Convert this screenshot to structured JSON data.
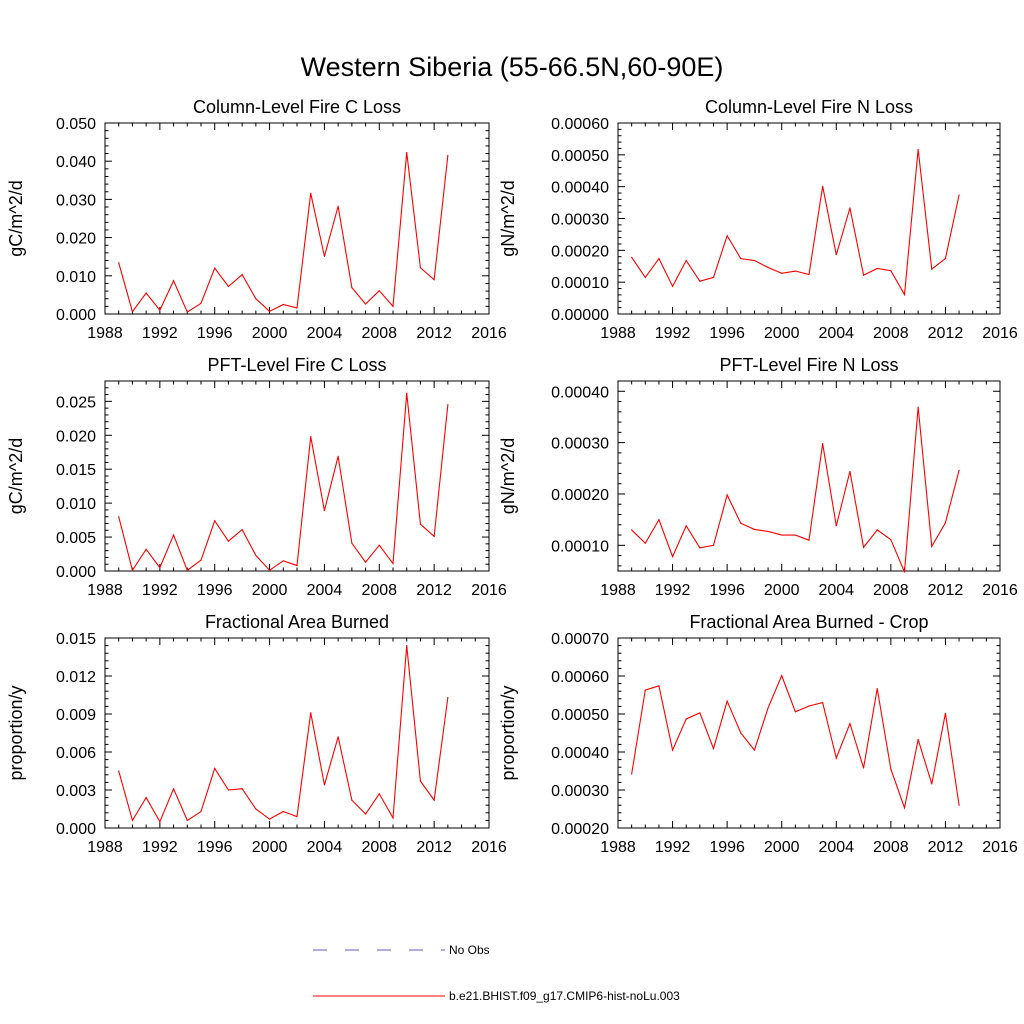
{
  "page": {
    "title": "Western Siberia (55-66.5N,60-90E)"
  },
  "chart_data": [
    {
      "type": "line",
      "title": "Column-Level Fire C Loss",
      "ylabel": "gC/m^2/d",
      "xlabel": "",
      "xlim": [
        1988,
        2016
      ],
      "ylim": [
        0,
        0.05
      ],
      "xticks": [
        1988,
        1992,
        1996,
        2000,
        2004,
        2008,
        2012,
        2016
      ],
      "yticks": [
        "0.000",
        "0.010",
        "0.020",
        "0.030",
        "0.040",
        "0.050"
      ],
      "x": [
        1989,
        1990,
        1991,
        1992,
        1993,
        1994,
        1995,
        1996,
        1997,
        1998,
        1999,
        2000,
        2001,
        2002,
        2003,
        2004,
        2005,
        2006,
        2007,
        2008,
        2009,
        2010,
        2011,
        2012,
        2013
      ],
      "series": [
        {
          "name": "b.e21.BHIST.f09_g17.CMIP6-hist-noLu.003",
          "color": "#ff0000",
          "values": [
            0.0134,
            0.0006,
            0.0055,
            0.001,
            0.0087,
            0.0005,
            0.0028,
            0.012,
            0.0072,
            0.0103,
            0.004,
            0.0007,
            0.0025,
            0.0016,
            0.0316,
            0.0151,
            0.0282,
            0.0069,
            0.0026,
            0.0061,
            0.002,
            0.0423,
            0.0121,
            0.009,
            0.0415
          ]
        }
      ]
    },
    {
      "type": "line",
      "title": "Column-Level Fire N Loss",
      "ylabel": "gN/m^2/d",
      "xlabel": "",
      "xlim": [
        1988,
        2016
      ],
      "ylim": [
        0,
        0.0006
      ],
      "xticks": [
        1988,
        1992,
        1996,
        2000,
        2004,
        2008,
        2012,
        2016
      ],
      "yticks": [
        "0.00000",
        "0.00010",
        "0.00020",
        "0.00030",
        "0.00040",
        "0.00050",
        "0.00060"
      ],
      "x": [
        1989,
        1990,
        1991,
        1992,
        1993,
        1994,
        1995,
        1996,
        1997,
        1998,
        1999,
        2000,
        2001,
        2002,
        2003,
        2004,
        2005,
        2006,
        2007,
        2008,
        2009,
        2010,
        2011,
        2012,
        2013
      ],
      "series": [
        {
          "name": "b.e21.BHIST.f09_g17.CMIP6-hist-noLu.003",
          "color": "#ff0000",
          "values": [
            0.000178,
            0.000115,
            0.000174,
            8.7e-05,
            0.000168,
            0.000103,
            0.000115,
            0.000246,
            0.000174,
            0.000168,
            0.000146,
            0.000128,
            0.000135,
            0.000124,
            0.000401,
            0.000186,
            0.000333,
            0.000122,
            0.000143,
            0.000136,
            6.1e-05,
            0.000517,
            0.000141,
            0.000174,
            0.000374
          ]
        }
      ]
    },
    {
      "type": "line",
      "title": "PFT-Level Fire C Loss",
      "ylabel": "gC/m^2/d",
      "xlabel": "",
      "xlim": [
        1988,
        2016
      ],
      "ylim": [
        0,
        0.028
      ],
      "xticks": [
        1988,
        1992,
        1996,
        2000,
        2004,
        2008,
        2012,
        2016
      ],
      "yticks": [
        "0.000",
        "0.005",
        "0.010",
        "0.015",
        "0.020",
        "0.025"
      ],
      "x": [
        1989,
        1990,
        1991,
        1992,
        1993,
        1994,
        1995,
        1996,
        1997,
        1998,
        1999,
        2000,
        2001,
        2002,
        2003,
        2004,
        2005,
        2006,
        2007,
        2008,
        2009,
        2010,
        2011,
        2012,
        2013
      ],
      "series": [
        {
          "name": "b.e21.BHIST.f09_g17.CMIP6-hist-noLu.003",
          "color": "#ff0000",
          "values": [
            0.008,
            0.0001,
            0.0032,
            0.0005,
            0.0053,
            0.0001,
            0.0016,
            0.0074,
            0.0044,
            0.0061,
            0.0023,
            0.0001,
            0.0015,
            0.0008,
            0.0198,
            0.0089,
            0.0169,
            0.0041,
            0.0013,
            0.0038,
            0.0011,
            0.0262,
            0.0069,
            0.0051,
            0.0245
          ]
        }
      ]
    },
    {
      "type": "line",
      "title": "PFT-Level Fire N Loss",
      "ylabel": "gN/m^2/d",
      "xlabel": "",
      "xlim": [
        1988,
        2016
      ],
      "ylim": [
        5e-05,
        0.00042
      ],
      "xticks": [
        1988,
        1992,
        1996,
        2000,
        2004,
        2008,
        2012,
        2016
      ],
      "yticks": [
        "0.00010",
        "0.00020",
        "0.00030",
        "0.00040"
      ],
      "x": [
        1989,
        1990,
        1991,
        1992,
        1993,
        1994,
        1995,
        1996,
        1997,
        1998,
        1999,
        2000,
        2001,
        2002,
        2003,
        2004,
        2005,
        2006,
        2007,
        2008,
        2009,
        2010,
        2011,
        2012,
        2013
      ],
      "series": [
        {
          "name": "b.e21.BHIST.f09_g17.CMIP6-hist-noLu.003",
          "color": "#ff0000",
          "values": [
            0.00013,
            0.000104,
            0.00015,
            7.8e-05,
            0.000138,
            9.5e-05,
            0.0001,
            0.000198,
            0.000143,
            0.000131,
            0.000127,
            0.00012,
            0.00012,
            0.00011,
            0.000298,
            0.000138,
            0.000244,
            9.6e-05,
            0.00013,
            0.000111,
            4.8e-05,
            0.000369,
            9.8e-05,
            0.000144,
            0.000246
          ]
        }
      ]
    },
    {
      "type": "line",
      "title": "Fractional Area Burned",
      "ylabel": "proportion/y",
      "xlabel": "",
      "xlim": [
        1988,
        2016
      ],
      "ylim": [
        0,
        0.015
      ],
      "xticks": [
        1988,
        1992,
        1996,
        2000,
        2004,
        2008,
        2012,
        2016
      ],
      "yticks": [
        "0.000",
        "0.003",
        "0.006",
        "0.009",
        "0.012",
        "0.015"
      ],
      "x": [
        1989,
        1990,
        1991,
        1992,
        1993,
        1994,
        1995,
        1996,
        1997,
        1998,
        1999,
        2000,
        2001,
        2002,
        2003,
        2004,
        2005,
        2006,
        2007,
        2008,
        2009,
        2010,
        2011,
        2012,
        2013
      ],
      "series": [
        {
          "name": "b.e21.BHIST.f09_g17.CMIP6-hist-noLu.003",
          "color": "#ff0000",
          "values": [
            0.0045,
            0.0006,
            0.0024,
            0.0005,
            0.0031,
            0.0006,
            0.0013,
            0.0047,
            0.003,
            0.0031,
            0.0015,
            0.0007,
            0.0013,
            0.0009,
            0.0091,
            0.0034,
            0.0072,
            0.0022,
            0.0011,
            0.0027,
            0.0008,
            0.0144,
            0.0037,
            0.0022,
            0.0103
          ]
        }
      ]
    },
    {
      "type": "line",
      "title": "Fractional Area Burned - Crop",
      "ylabel": "proportion/y",
      "xlabel": "",
      "xlim": [
        1988,
        2016
      ],
      "ylim": [
        0.0002,
        0.0007
      ],
      "xticks": [
        1988,
        1992,
        1996,
        2000,
        2004,
        2008,
        2012,
        2016
      ],
      "yticks": [
        "0.00020",
        "0.00030",
        "0.00040",
        "0.00050",
        "0.00060",
        "0.00070"
      ],
      "x": [
        1989,
        1990,
        1991,
        1992,
        1993,
        1994,
        1995,
        1996,
        1997,
        1998,
        1999,
        2000,
        2001,
        2002,
        2003,
        2004,
        2005,
        2006,
        2007,
        2008,
        2009,
        2010,
        2011,
        2012,
        2013
      ],
      "series": [
        {
          "name": "b.e21.BHIST.f09_g17.CMIP6-hist-noLu.003",
          "color": "#ff0000",
          "values": [
            0.000342,
            0.000563,
            0.000574,
            0.000405,
            0.000487,
            0.000503,
            0.000409,
            0.000534,
            0.00045,
            0.000405,
            0.000516,
            0.000601,
            0.000506,
            0.000521,
            0.00053,
            0.000384,
            0.000475,
            0.000358,
            0.000567,
            0.000355,
            0.000253,
            0.000433,
            0.000316,
            0.000502,
            0.00026
          ]
        }
      ]
    }
  ],
  "legend": {
    "items": [
      {
        "label": "No Obs",
        "style": "dashed",
        "color": "#5a5ad2"
      },
      {
        "label": "b.e21.BHIST.f09_g17.CMIP6-hist-noLu.003",
        "style": "solid",
        "color": "#ff0000"
      }
    ]
  }
}
